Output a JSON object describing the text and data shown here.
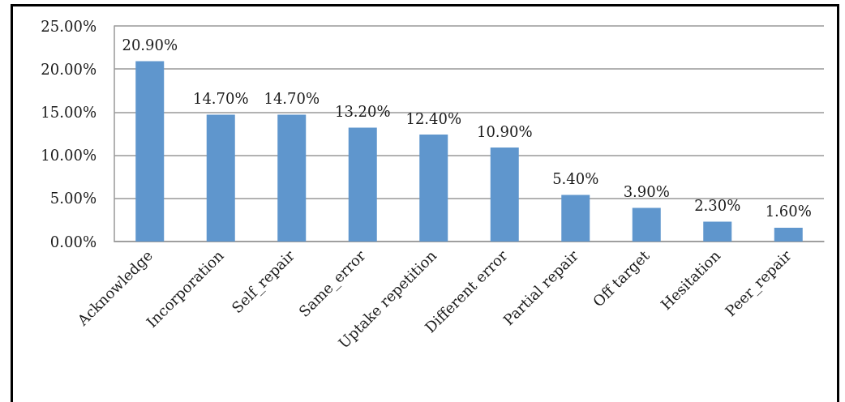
{
  "chart_data": {
    "type": "bar",
    "categories": [
      "Acknowledge",
      "Incorporation",
      "Self_repair",
      "Same_error",
      "Uptake repetition",
      "Different error",
      "Partial repair",
      "Off target",
      "Hesitation",
      "Peer_repair"
    ],
    "values": [
      20.9,
      14.7,
      14.7,
      13.2,
      12.4,
      10.9,
      5.4,
      3.9,
      2.3,
      1.6
    ],
    "value_labels": [
      "20.90%",
      "14.70%",
      "14.70%",
      "13.20%",
      "12.40%",
      "10.90%",
      "5.40%",
      "3.90%",
      "2.30%",
      "1.60%"
    ],
    "color": "#5f96cd",
    "ylim": [
      0,
      25
    ],
    "yticks": [
      {
        "value": 0,
        "label": "0.00%"
      },
      {
        "value": 5,
        "label": "5.00%"
      },
      {
        "value": 10,
        "label": "10.00%"
      },
      {
        "value": 15,
        "label": "15.00%"
      },
      {
        "value": 20,
        "label": "20.00%"
      },
      {
        "value": 25,
        "label": "25.00%"
      }
    ],
    "grid": "y"
  }
}
